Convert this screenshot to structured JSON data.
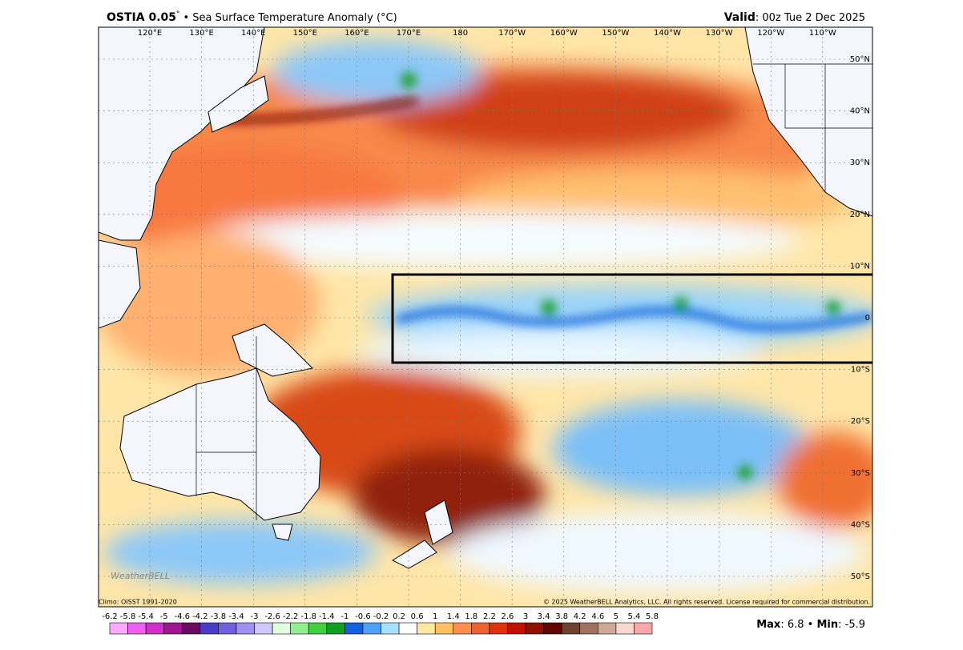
{
  "header": {
    "title": "OSTIA 0.05",
    "title_degree": "°",
    "subtitle": "• Sea Surface Temperature Anomaly (°C)",
    "valid_label": "Valid",
    "valid_value": ": 00z Tue 2 Dec 2025"
  },
  "map": {
    "lon_labels": [
      "120°E",
      "130°E",
      "140°E",
      "150°E",
      "160°E",
      "170°E",
      "180",
      "170°W",
      "160°W",
      "150°W",
      "140°W",
      "130°W",
      "120°W",
      "110°W"
    ],
    "lat_labels": [
      "50°N",
      "40°N",
      "30°N",
      "20°N",
      "10°N",
      "0",
      "10°S",
      "20°S",
      "30°S",
      "40°S",
      "50°S"
    ],
    "logo": "WeatherBELL"
  },
  "footer": {
    "climo": "Climo: OISST 1991-2020",
    "copyright": "© 2025 WeatherBELL Analytics, LLC. All rights reserved. License required for commercial distribution."
  },
  "colorbar": {
    "ticks": [
      "-6.2",
      "-5.8",
      "-5.4",
      "-5",
      "-4.6",
      "-4.2",
      "-3.8",
      "-3.4",
      "-3",
      "-2.6",
      "-2.2",
      "-1.8",
      "-1.4",
      "-1",
      "-0.6",
      "-0.2",
      "0.2",
      "0.6",
      "1",
      "1.4",
      "1.8",
      "2.2",
      "2.6",
      "3",
      "3.4",
      "3.8",
      "4.2",
      "4.6",
      "5",
      "5.4",
      "5.8"
    ],
    "colors": [
      "#ffa8ff",
      "#f060f0",
      "#d030c8",
      "#a01890",
      "#6a0c60",
      "#4a3cc8",
      "#7060e0",
      "#a090f0",
      "#d0c8f8",
      "#e0ffe0",
      "#90f090",
      "#40d040",
      "#10a020",
      "#1060e0",
      "#50a0f8",
      "#a8e0ff",
      "#ffffff",
      "#ffe8a0",
      "#ffc060",
      "#ff9050",
      "#f06030",
      "#e03010",
      "#c01000",
      "#901000",
      "#600800",
      "#704030",
      "#a07060",
      "#d0a898",
      "#f8d8d0",
      "#f8a8a8",
      "#e05050"
    ]
  },
  "stats": {
    "max_label": "Max",
    "max_value": ": 6.8",
    "separator": " • ",
    "min_label": "Min",
    "min_value": ": -5.9"
  }
}
